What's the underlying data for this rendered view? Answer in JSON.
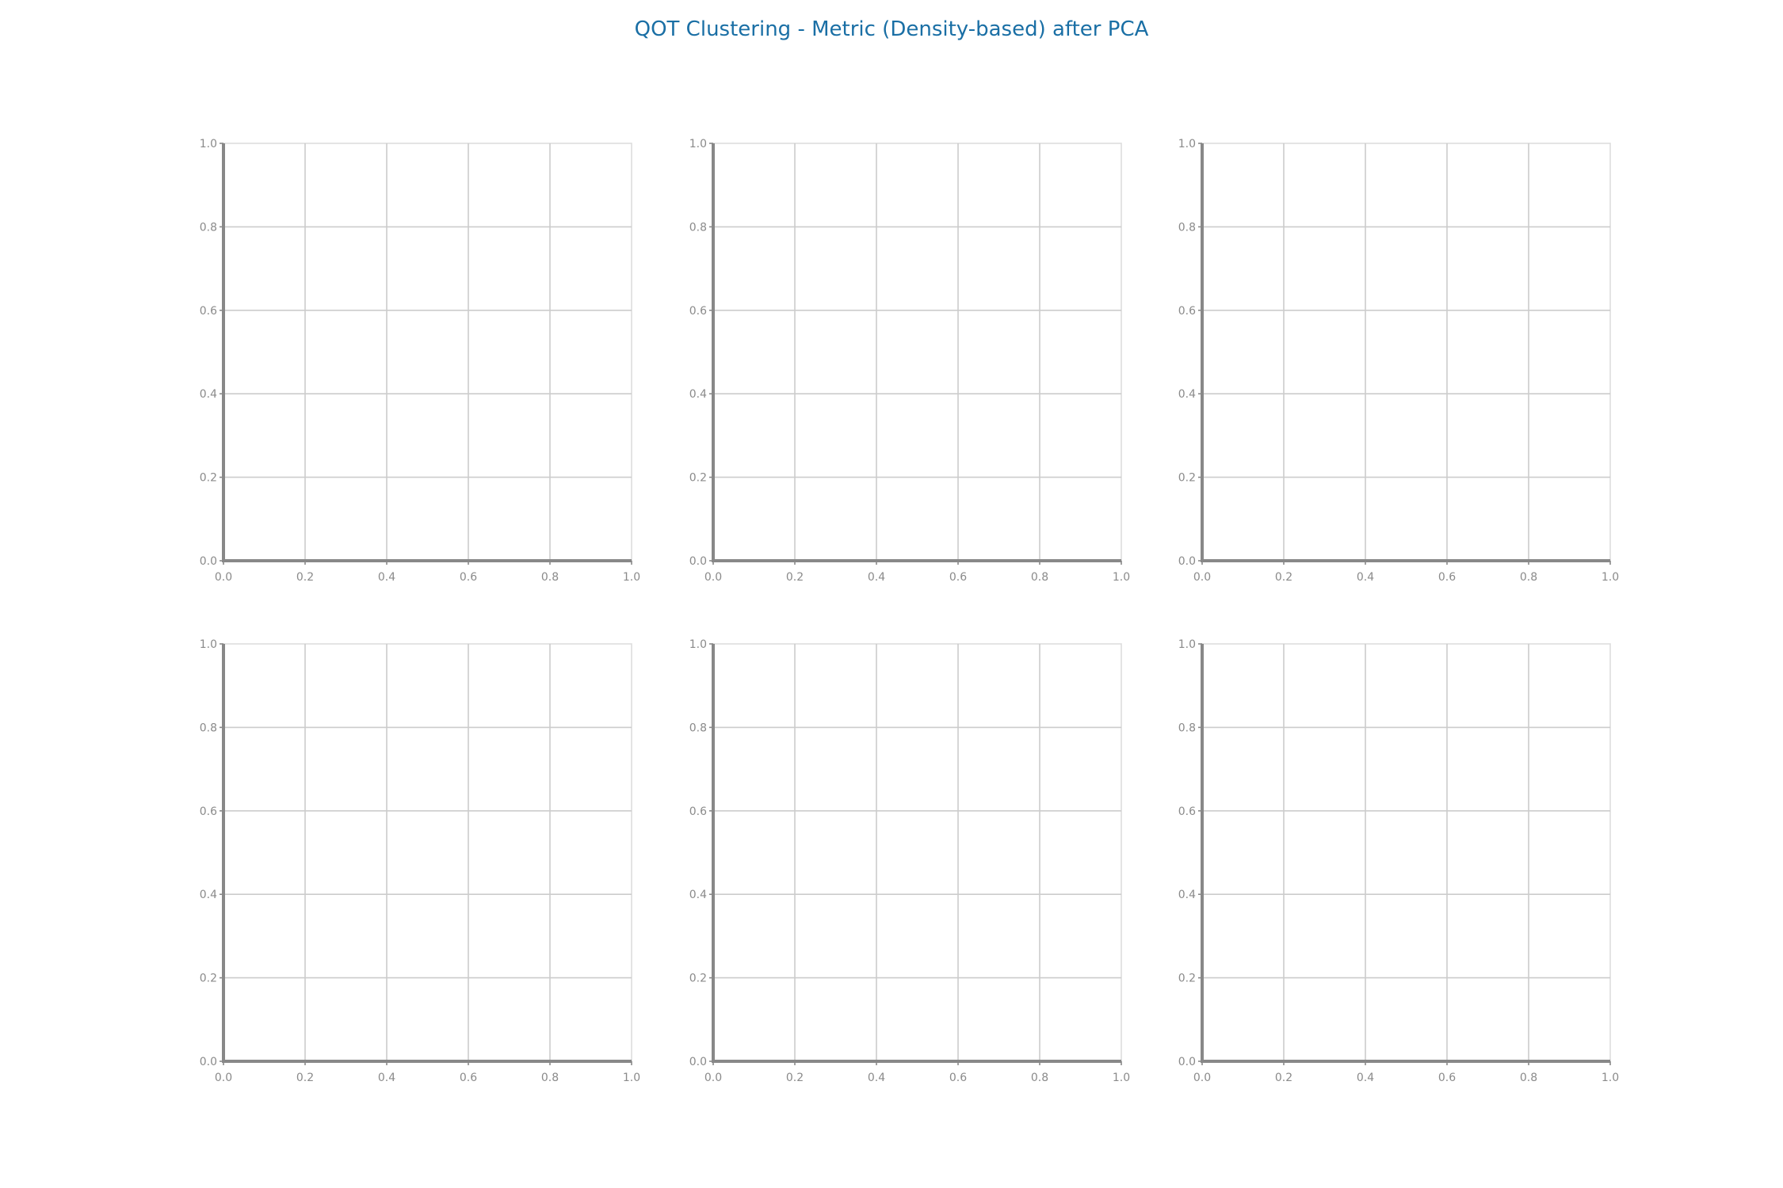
{
  "title": "QOT Clustering - Metric (Density-based) after PCA",
  "colors": {
    "title": "#1a6fa5",
    "axis": "#888888",
    "grid": "#cccccc",
    "tick_label": "#8a8a8a"
  },
  "chart_data": [
    {
      "type": "scatter",
      "xlim": [
        0,
        1
      ],
      "ylim": [
        0,
        1
      ],
      "grid": true,
      "xticks": [
        "0.0",
        "0.2",
        "0.4",
        "0.6",
        "0.8",
        "1.0"
      ],
      "yticks": [
        "0.0",
        "0.2",
        "0.4",
        "0.6",
        "0.8",
        "1.0"
      ],
      "series": []
    },
    {
      "type": "scatter",
      "xlim": [
        0,
        1
      ],
      "ylim": [
        0,
        1
      ],
      "grid": true,
      "xticks": [
        "0.0",
        "0.2",
        "0.4",
        "0.6",
        "0.8",
        "1.0"
      ],
      "yticks": [
        "0.0",
        "0.2",
        "0.4",
        "0.6",
        "0.8",
        "1.0"
      ],
      "series": []
    },
    {
      "type": "scatter",
      "xlim": [
        0,
        1
      ],
      "ylim": [
        0,
        1
      ],
      "grid": true,
      "xticks": [
        "0.0",
        "0.2",
        "0.4",
        "0.6",
        "0.8",
        "1.0"
      ],
      "yticks": [
        "0.0",
        "0.2",
        "0.4",
        "0.6",
        "0.8",
        "1.0"
      ],
      "series": []
    },
    {
      "type": "scatter",
      "xlim": [
        0,
        1
      ],
      "ylim": [
        0,
        1
      ],
      "grid": true,
      "xticks": [
        "0.0",
        "0.2",
        "0.4",
        "0.6",
        "0.8",
        "1.0"
      ],
      "yticks": [
        "0.0",
        "0.2",
        "0.4",
        "0.6",
        "0.8",
        "1.0"
      ],
      "series": []
    },
    {
      "type": "scatter",
      "xlim": [
        0,
        1
      ],
      "ylim": [
        0,
        1
      ],
      "grid": true,
      "xticks": [
        "0.0",
        "0.2",
        "0.4",
        "0.6",
        "0.8",
        "1.0"
      ],
      "yticks": [
        "0.0",
        "0.2",
        "0.4",
        "0.6",
        "0.8",
        "1.0"
      ],
      "series": []
    },
    {
      "type": "scatter",
      "xlim": [
        0,
        1
      ],
      "ylim": [
        0,
        1
      ],
      "grid": true,
      "xticks": [
        "0.0",
        "0.2",
        "0.4",
        "0.6",
        "0.8",
        "1.0"
      ],
      "yticks": [
        "0.0",
        "0.2",
        "0.4",
        "0.6",
        "0.8",
        "1.0"
      ],
      "series": []
    }
  ]
}
